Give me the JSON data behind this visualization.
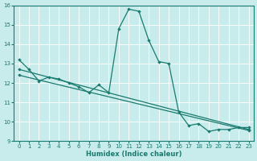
{
  "xlabel": "Humidex (Indice chaleur)",
  "background_color": "#c8ecec",
  "grid_color": "#ffffff",
  "line_color": "#1a7a6e",
  "xlim": [
    -0.5,
    23.5
  ],
  "ylim": [
    9,
    16
  ],
  "xticks": [
    0,
    1,
    2,
    3,
    4,
    5,
    6,
    7,
    8,
    9,
    10,
    11,
    12,
    13,
    14,
    15,
    16,
    17,
    18,
    19,
    20,
    21,
    22,
    23
  ],
  "yticks": [
    9,
    10,
    11,
    12,
    13,
    14,
    15,
    16
  ],
  "series1_x": [
    0,
    1,
    2,
    3,
    4,
    5,
    6,
    7,
    8,
    9,
    10,
    11,
    12,
    13,
    14,
    15,
    16,
    17,
    18,
    19,
    20,
    21,
    22,
    23
  ],
  "series1_y": [
    13.2,
    12.7,
    12.1,
    12.3,
    12.2,
    12.0,
    11.8,
    11.5,
    11.9,
    11.5,
    14.8,
    15.8,
    15.7,
    14.2,
    13.1,
    13.0,
    10.5,
    9.8,
    9.9,
    9.5,
    9.6,
    9.6,
    9.7,
    9.7
  ],
  "series2_x": [
    0,
    23
  ],
  "series2_y": [
    12.7,
    9.6
  ],
  "series3_x": [
    0,
    23
  ],
  "series3_y": [
    12.4,
    9.55
  ],
  "xlabel_fontsize": 6,
  "tick_fontsize": 5
}
